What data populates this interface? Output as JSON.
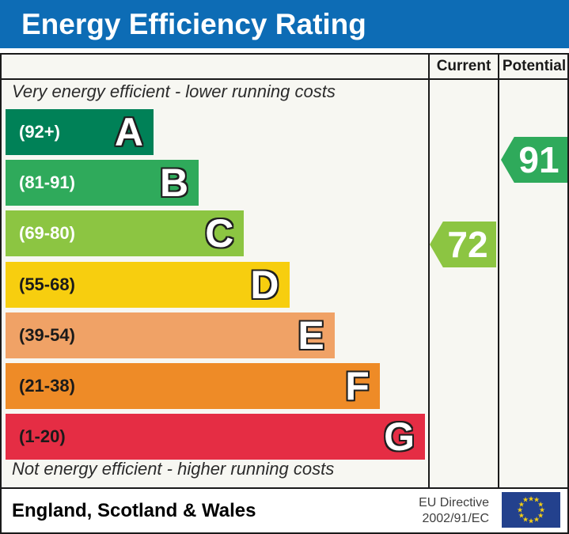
{
  "title": "Energy Efficiency Rating",
  "table": {
    "columns": {
      "current": "Current",
      "potential": "Potential"
    }
  },
  "chart_data": {
    "type": "bar",
    "title": "Energy Efficiency Rating",
    "top_note": "Very energy efficient - lower running costs",
    "bottom_note": "Not energy efficient - higher running costs",
    "bands": [
      {
        "letter": "A",
        "range_label": "(92+)",
        "min": 92,
        "max": 100,
        "color": "#008157",
        "label_color": "#ffffff"
      },
      {
        "letter": "B",
        "range_label": "(81-91)",
        "min": 81,
        "max": 91,
        "color": "#2faa5b",
        "label_color": "#ffffff"
      },
      {
        "letter": "C",
        "range_label": "(69-80)",
        "min": 69,
        "max": 80,
        "color": "#8cc542",
        "label_color": "#ffffff"
      },
      {
        "letter": "D",
        "range_label": "(55-68)",
        "min": 55,
        "max": 68,
        "color": "#f7ce0f",
        "label_color": "#1a1a1a"
      },
      {
        "letter": "E",
        "range_label": "(39-54)",
        "min": 39,
        "max": 54,
        "color": "#f0a266",
        "label_color": "#1a1a1a"
      },
      {
        "letter": "F",
        "range_label": "(21-38)",
        "min": 21,
        "max": 38,
        "color": "#ee8b27",
        "label_color": "#1a1a1a"
      },
      {
        "letter": "G",
        "range_label": "(1-20)",
        "min": 1,
        "max": 20,
        "color": "#e52d44",
        "label_color": "#1a1a1a"
      }
    ],
    "markers": {
      "current": {
        "value": 72,
        "color": "#8cc542"
      },
      "potential": {
        "value": 91,
        "color": "#2faa5b"
      }
    }
  },
  "footer": {
    "region": "England, Scotland & Wales",
    "directive_line1": "EU Directive",
    "directive_line2": "2002/91/EC",
    "eu_flag_color": "#23418d",
    "eu_star_color": "#f8d012"
  },
  "colors": {
    "header_bg": "#0d6cb5",
    "board_bg": "#f7f7f2",
    "border": "#1a1a1a"
  }
}
